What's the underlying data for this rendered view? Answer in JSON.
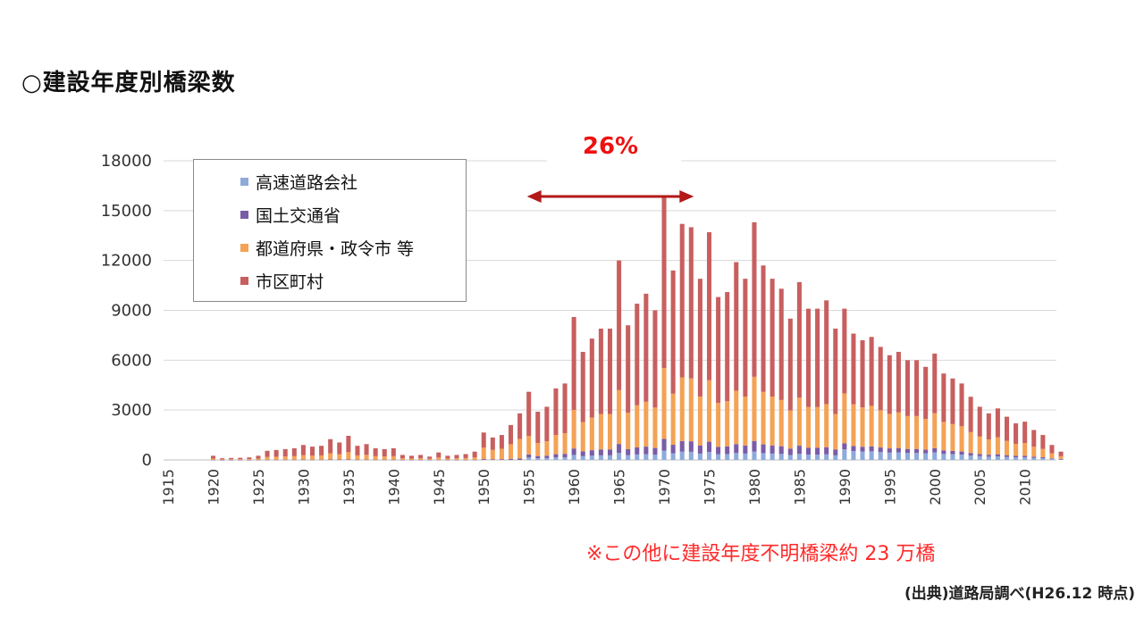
{
  "title": "○建設年度別橋梁数",
  "note": "※この他に建設年度不明橋梁約 23 万橋",
  "source": "(出典)道路局調べ(H26.12 時点)",
  "colors": {
    "expressway": "#8eaadb",
    "national": "#7a5ca6",
    "prefecture": "#f4a255",
    "municipal": "#c85f5f",
    "annotation": "#ee1111",
    "arrow": "#b31919"
  },
  "chart_data": {
    "type": "bar",
    "stacked": true,
    "title": "",
    "xlabel": "",
    "ylabel": "",
    "ylim": [
      0,
      18000
    ],
    "yticks": [
      "0",
      "3000",
      "6000",
      "9000",
      "12000",
      "15000",
      "18000"
    ],
    "x_range": [
      1915,
      2013
    ],
    "xticks": [
      "1915",
      "1920",
      "1925",
      "1930",
      "1935",
      "1940",
      "1945",
      "1950",
      "1955",
      "1960",
      "1965",
      "1970",
      "1975",
      "1980",
      "1985",
      "1990",
      "1995",
      "2000",
      "2005",
      "2010"
    ],
    "legend": [
      "高速道路会社",
      "国土交通省",
      "都道府県・政令市 等",
      "市区町村"
    ],
    "annotation": {
      "label": "26%",
      "from": 1955,
      "to": 1973
    },
    "totals": [
      [
        1920,
        250
      ],
      [
        1921,
        100
      ],
      [
        1922,
        120
      ],
      [
        1923,
        130
      ],
      [
        1924,
        150
      ],
      [
        1925,
        250
      ],
      [
        1926,
        550
      ],
      [
        1927,
        600
      ],
      [
        1928,
        650
      ],
      [
        1929,
        700
      ],
      [
        1930,
        900
      ],
      [
        1931,
        800
      ],
      [
        1932,
        850
      ],
      [
        1933,
        1250
      ],
      [
        1934,
        1050
      ],
      [
        1935,
        1450
      ],
      [
        1936,
        850
      ],
      [
        1937,
        950
      ],
      [
        1938,
        700
      ],
      [
        1939,
        650
      ],
      [
        1940,
        700
      ],
      [
        1941,
        300
      ],
      [
        1942,
        250
      ],
      [
        1943,
        300
      ],
      [
        1944,
        200
      ],
      [
        1945,
        450
      ],
      [
        1946,
        250
      ],
      [
        1947,
        300
      ],
      [
        1948,
        350
      ],
      [
        1949,
        500
      ],
      [
        1950,
        1650
      ],
      [
        1951,
        1350
      ],
      [
        1952,
        1500
      ],
      [
        1953,
        2100
      ],
      [
        1954,
        2800
      ],
      [
        1955,
        4100
      ],
      [
        1956,
        2900
      ],
      [
        1957,
        3200
      ],
      [
        1958,
        4300
      ],
      [
        1959,
        4600
      ],
      [
        1960,
        8600
      ],
      [
        1961,
        6500
      ],
      [
        1962,
        7300
      ],
      [
        1963,
        7900
      ],
      [
        1964,
        7900
      ],
      [
        1965,
        12000
      ],
      [
        1966,
        8100
      ],
      [
        1967,
        9400
      ],
      [
        1968,
        10000
      ],
      [
        1969,
        9000
      ],
      [
        1970,
        15800
      ],
      [
        1971,
        11400
      ],
      [
        1972,
        14200
      ],
      [
        1973,
        14000
      ],
      [
        1974,
        10900
      ],
      [
        1975,
        13700
      ],
      [
        1976,
        9800
      ],
      [
        1977,
        10100
      ],
      [
        1978,
        11900
      ],
      [
        1979,
        10900
      ],
      [
        1980,
        14300
      ],
      [
        1981,
        11700
      ],
      [
        1982,
        10900
      ],
      [
        1983,
        10300
      ],
      [
        1984,
        8500
      ],
      [
        1985,
        10700
      ],
      [
        1986,
        9100
      ],
      [
        1987,
        9100
      ],
      [
        1988,
        9600
      ],
      [
        1989,
        7900
      ],
      [
        1990,
        9100
      ],
      [
        1991,
        7600
      ],
      [
        1992,
        7200
      ],
      [
        1993,
        7400
      ],
      [
        1994,
        6800
      ],
      [
        1995,
        6300
      ],
      [
        1996,
        6500
      ],
      [
        1997,
        6000
      ],
      [
        1998,
        6000
      ],
      [
        1999,
        5600
      ],
      [
        2000,
        6400
      ],
      [
        2001,
        5200
      ],
      [
        2002,
        4900
      ],
      [
        2003,
        4600
      ],
      [
        2004,
        3800
      ],
      [
        2005,
        3200
      ],
      [
        2006,
        2800
      ],
      [
        2007,
        3100
      ],
      [
        2008,
        2600
      ],
      [
        2009,
        2200
      ],
      [
        2010,
        2300
      ],
      [
        2011,
        1800
      ],
      [
        2012,
        1500
      ],
      [
        2013,
        900
      ],
      [
        2014,
        500
      ]
    ],
    "series": [
      {
        "name": "高速道路会社",
        "breakdown_note": "estimated from bar segments"
      },
      {
        "name": "国土交通省"
      },
      {
        "name": "都道府県・政令市 等"
      },
      {
        "name": "市区町村"
      }
    ]
  }
}
